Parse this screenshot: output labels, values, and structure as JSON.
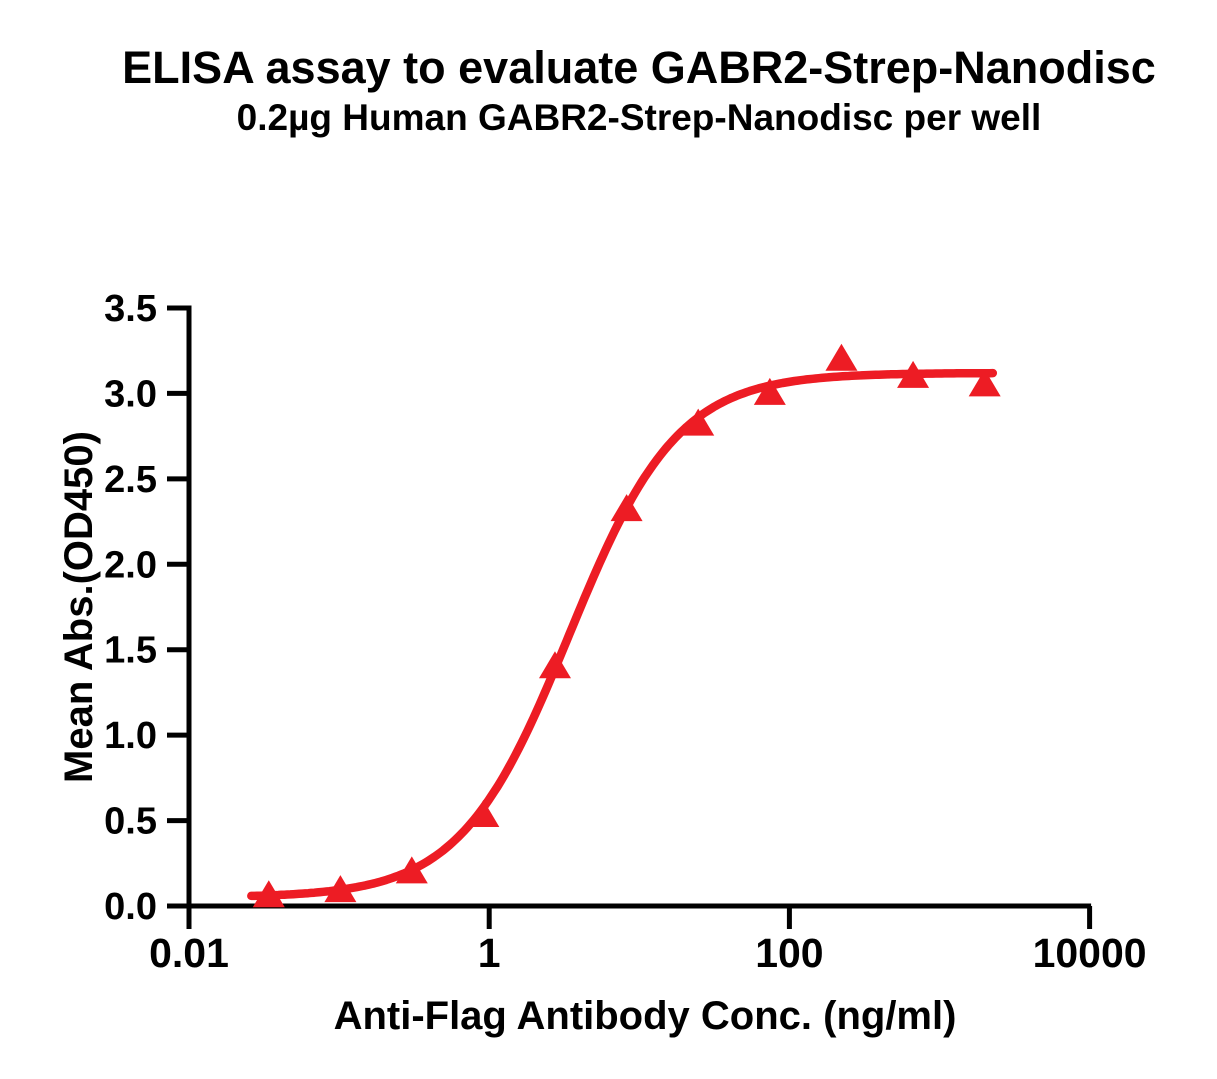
{
  "chart_data": {
    "type": "line",
    "title": "ELISA assay to evaluate GABR2-Strep-Nanodisc",
    "subtitle": "0.2µg Human GABR2-Strep-Nanodisc per well",
    "xlabel": "Anti-Flag Antibody Conc. (ng/ml)",
    "ylabel": "Mean Abs.(OD450)",
    "x_scale": "log10",
    "xlim": [
      0.01,
      10000
    ],
    "ylim": [
      0,
      3.5
    ],
    "x_ticks": {
      "values": [
        0.01,
        1,
        100,
        10000
      ],
      "labels": [
        "0.01",
        "1",
        "100",
        "10000"
      ]
    },
    "y_ticks": {
      "values": [
        0,
        0.5,
        1,
        1.5,
        2,
        2.5,
        3,
        3.5
      ],
      "labels": [
        "0.0",
        "0.5",
        "1.0",
        "1.5",
        "2.0",
        "2.5",
        "3.0",
        "3.5"
      ]
    },
    "grid": false,
    "legend": false,
    "series": [
      {
        "marker": "filled-triangle-up",
        "color": "#ED1C24",
        "points": [
          {
            "x": 0.034,
            "y": 0.06
          },
          {
            "x": 0.102,
            "y": 0.09
          },
          {
            "x": 0.305,
            "y": 0.2
          },
          {
            "x": 0.914,
            "y": 0.53
          },
          {
            "x": 2.743,
            "y": 1.4
          },
          {
            "x": 8.23,
            "y": 2.32
          },
          {
            "x": 24.69,
            "y": 2.82
          },
          {
            "x": 74.07,
            "y": 3.0
          },
          {
            "x": 222.2,
            "y": 3.2
          },
          {
            "x": 666.7,
            "y": 3.1
          },
          {
            "x": 2000,
            "y": 3.05
          }
        ],
        "fit_curve": {
          "model": "4PL",
          "bottom": 0.05,
          "top": 3.12,
          "ec50": 3.4,
          "hill": 1.2,
          "draw_range_x": [
            0.026,
            2300
          ]
        }
      }
    ],
    "colors": {
      "curve": "#ED1C24",
      "axis": "#000000",
      "text": "#000000",
      "background": "#FFFFFF"
    }
  }
}
